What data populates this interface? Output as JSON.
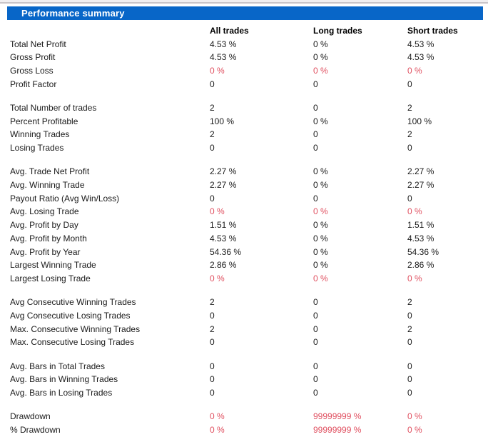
{
  "header": {
    "title": "Performance summary"
  },
  "columns": [
    "All trades",
    "Long trades",
    "Short trades"
  ],
  "colors": {
    "header_bg": "#0866c8",
    "header_text": "#ffffff",
    "negative_value": "#e05060",
    "normal_text": "#1a1a1a",
    "top_strip_bg": "#f1eff1"
  },
  "groups": [
    {
      "rows": [
        {
          "label": "Total Net Profit",
          "values": [
            "4.53 %",
            "0 %",
            "4.53 %"
          ],
          "negative": false
        },
        {
          "label": "Gross Profit",
          "values": [
            "4.53 %",
            "0 %",
            "4.53 %"
          ],
          "negative": false
        },
        {
          "label": "Gross Loss",
          "values": [
            "0 %",
            "0 %",
            "0 %"
          ],
          "negative": true
        },
        {
          "label": "Profit Factor",
          "values": [
            "0",
            "0",
            "0"
          ],
          "negative": false
        }
      ]
    },
    {
      "rows": [
        {
          "label": "Total Number of trades",
          "values": [
            "2",
            "0",
            "2"
          ],
          "negative": false
        },
        {
          "label": "Percent Profitable",
          "values": [
            "100 %",
            "0 %",
            "100 %"
          ],
          "negative": false
        },
        {
          "label": "Winning Trades",
          "values": [
            "2",
            "0",
            "2"
          ],
          "negative": false
        },
        {
          "label": "Losing Trades",
          "values": [
            "0",
            "0",
            "0"
          ],
          "negative": false
        }
      ]
    },
    {
      "rows": [
        {
          "label": "Avg. Trade Net Profit",
          "values": [
            "2.27 %",
            "0 %",
            "2.27 %"
          ],
          "negative": false
        },
        {
          "label": "Avg. Winning Trade",
          "values": [
            "2.27 %",
            "0 %",
            "2.27 %"
          ],
          "negative": false
        },
        {
          "label": "Payout Ratio (Avg Win/Loss)",
          "values": [
            "0",
            "0",
            "0"
          ],
          "negative": false
        },
        {
          "label": "Avg. Losing Trade",
          "values": [
            "0 %",
            "0 %",
            "0 %"
          ],
          "negative": true
        },
        {
          "label": "Avg. Profit by Day",
          "values": [
            "1.51 %",
            "0 %",
            "1.51 %"
          ],
          "negative": false
        },
        {
          "label": "Avg. Profit by Month",
          "values": [
            "4.53 %",
            "0 %",
            "4.53 %"
          ],
          "negative": false
        },
        {
          "label": "Avg. Profit by Year",
          "values": [
            "54.36 %",
            "0 %",
            "54.36 %"
          ],
          "negative": false
        },
        {
          "label": "Largest Winning Trade",
          "values": [
            "2.86 %",
            "0 %",
            "2.86 %"
          ],
          "negative": false
        },
        {
          "label": "Largest Losing Trade",
          "values": [
            "0 %",
            "0 %",
            "0 %"
          ],
          "negative": true
        }
      ]
    },
    {
      "rows": [
        {
          "label": "Avg Consecutive Winning Trades",
          "values": [
            "2",
            "0",
            "2"
          ],
          "negative": false
        },
        {
          "label": "Avg Consecutive Losing Trades",
          "values": [
            "0",
            "0",
            "0"
          ],
          "negative": false
        },
        {
          "label": "Max. Consecutive Winning Trades",
          "values": [
            "2",
            "0",
            "2"
          ],
          "negative": false
        },
        {
          "label": "Max. Consecutive Losing Trades",
          "values": [
            "0",
            "0",
            "0"
          ],
          "negative": false
        }
      ]
    },
    {
      "rows": [
        {
          "label": "Avg. Bars in Total Trades",
          "values": [
            "0",
            "0",
            "0"
          ],
          "negative": false
        },
        {
          "label": "Avg. Bars in Winning Trades",
          "values": [
            "0",
            "0",
            "0"
          ],
          "negative": false
        },
        {
          "label": "Avg. Bars in Losing Trades",
          "values": [
            "0",
            "0",
            "0"
          ],
          "negative": false
        }
      ]
    },
    {
      "rows": [
        {
          "label": "Drawdown",
          "values": [
            "0 %",
            "99999999 %",
            "0 %"
          ],
          "negative": true
        },
        {
          "label": "% Drawdown",
          "values": [
            "0 %",
            "99999999 %",
            "0 %"
          ],
          "negative": true
        }
      ]
    }
  ]
}
